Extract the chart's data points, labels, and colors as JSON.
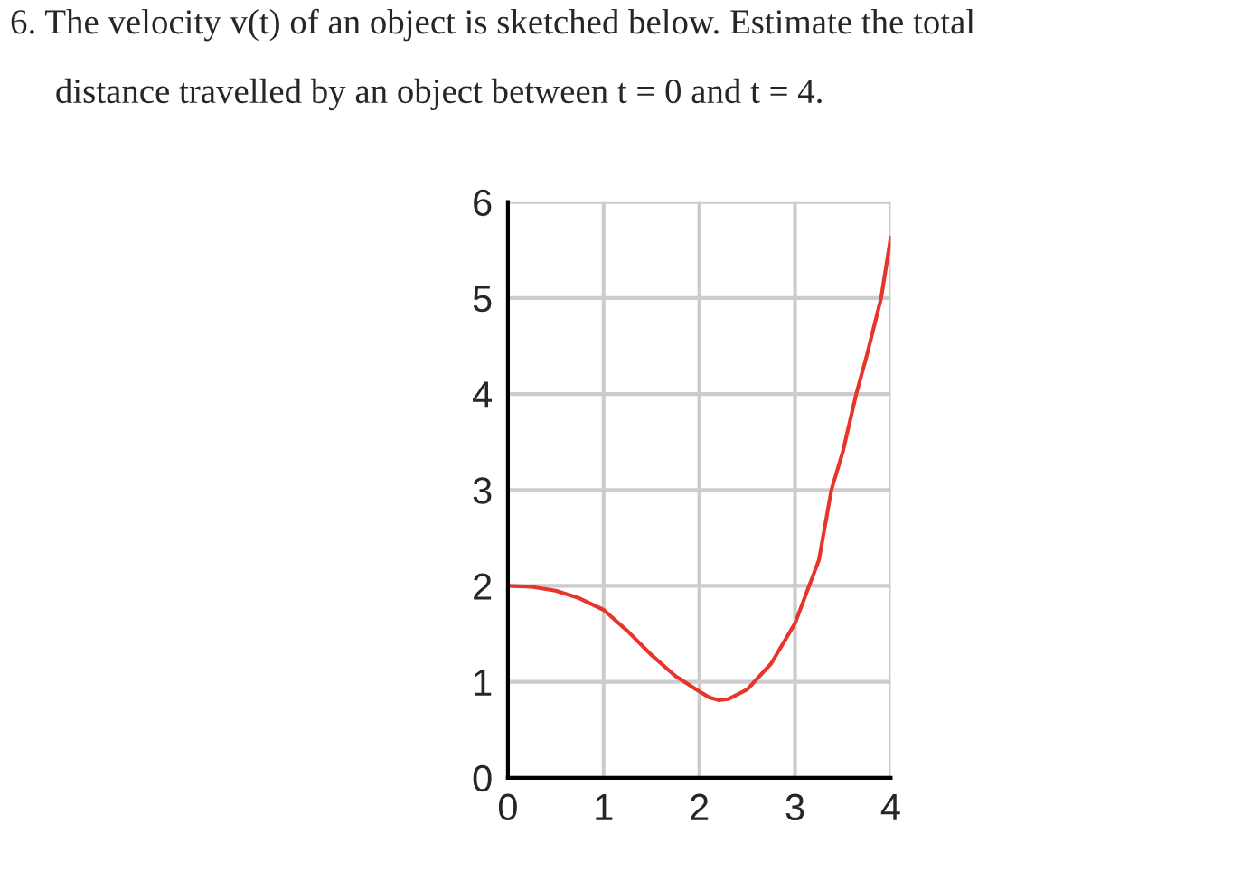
{
  "chart_data": {
    "type": "line",
    "title": "6. The velocity v(t) of an object is sketched below. Estimate the total",
    "subtitle": "distance travelled by an object between t = 0 and t = 4.",
    "x": [
      0,
      0.25,
      0.5,
      0.75,
      1,
      1.25,
      1.5,
      1.75,
      2,
      2.1,
      2.2,
      2.3,
      2.5,
      2.75,
      3,
      3.25,
      3.38,
      3.5,
      3.64,
      3.75,
      3.9,
      4
    ],
    "series": [
      {
        "color": "#e8352b",
        "values": [
          2.0,
          1.99,
          1.95,
          1.87,
          1.75,
          1.53,
          1.28,
          1.06,
          0.9,
          0.84,
          0.81,
          0.82,
          0.92,
          1.19,
          1.61,
          2.27,
          3,
          3.4,
          4,
          4.4,
          5,
          5.63
        ]
      }
    ],
    "xlim": [
      0,
      4
    ],
    "ylim": [
      0,
      6
    ],
    "xticks": [
      0,
      1,
      2,
      3,
      4
    ],
    "yticks": [
      0,
      1,
      2,
      3,
      4,
      5,
      6
    ],
    "grid": true,
    "marker": "none",
    "line_style": "solid"
  }
}
